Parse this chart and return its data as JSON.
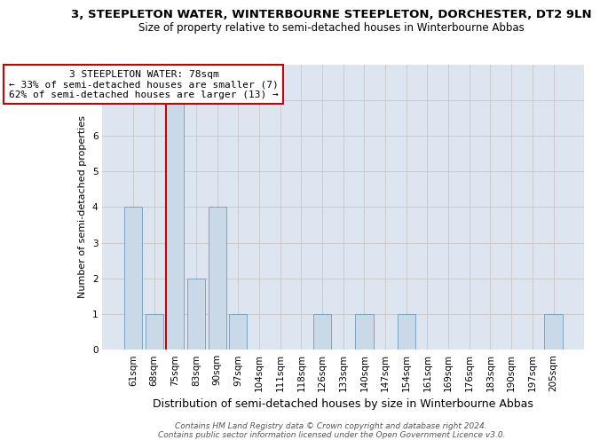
{
  "title": "3, STEEPLETON WATER, WINTERBOURNE STEEPLETON, DORCHESTER, DT2 9LN",
  "subtitle": "Size of property relative to semi-detached houses in Winterbourne Abbas",
  "xlabel": "Distribution of semi-detached houses by size in Winterbourne Abbas",
  "ylabel": "Number of semi-detached properties",
  "categories": [
    "61sqm",
    "68sqm",
    "75sqm",
    "83sqm",
    "90sqm",
    "97sqm",
    "104sqm",
    "111sqm",
    "118sqm",
    "126sqm",
    "133sqm",
    "140sqm",
    "147sqm",
    "154sqm",
    "161sqm",
    "169sqm",
    "176sqm",
    "183sqm",
    "190sqm",
    "197sqm",
    "205sqm"
  ],
  "values": [
    4,
    1,
    7,
    2,
    4,
    1,
    0,
    0,
    0,
    1,
    0,
    1,
    0,
    1,
    0,
    0,
    0,
    0,
    0,
    0,
    1
  ],
  "bar_color": "#c9d9e8",
  "bar_edge_color": "#7ca4c0",
  "highlight_index": 2,
  "highlight_line_color": "#cc0000",
  "annotation_text": "3 STEEPLETON WATER: 78sqm\n← 33% of semi-detached houses are smaller (7)\n62% of semi-detached houses are larger (13) →",
  "annotation_box_color": "#ffffff",
  "annotation_box_edge_color": "#cc0000",
  "ylim": [
    0,
    8
  ],
  "yticks": [
    0,
    1,
    2,
    3,
    4,
    5,
    6,
    7
  ],
  "grid_color": "#cccccc",
  "bg_color": "#dde6f0",
  "footer": "Contains HM Land Registry data © Crown copyright and database right 2024.\nContains public sector information licensed under the Open Government Licence v3.0.",
  "title_fontsize": 9.5,
  "subtitle_fontsize": 8.5,
  "xlabel_fontsize": 9,
  "ylabel_fontsize": 8,
  "tick_fontsize": 7.5,
  "annotation_fontsize": 8,
  "footer_fontsize": 6.5
}
